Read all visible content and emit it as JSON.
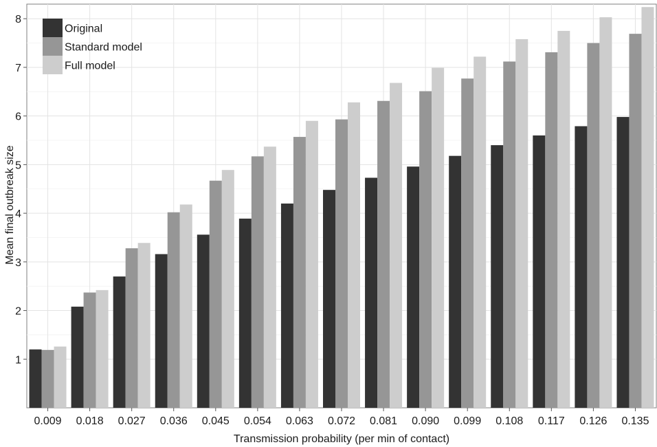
{
  "chart_data": {
    "type": "bar",
    "title": "",
    "xlabel": "Transmission probability (per min of contact)",
    "ylabel": "Mean final outbreak size",
    "categories": [
      "0.009",
      "0.018",
      "0.027",
      "0.036",
      "0.045",
      "0.054",
      "0.063",
      "0.072",
      "0.081",
      "0.090",
      "0.099",
      "0.108",
      "0.117",
      "0.126",
      "0.135"
    ],
    "series": [
      {
        "name": "Original",
        "color": "#333333",
        "values": [
          1.2,
          2.08,
          2.7,
          3.16,
          3.56,
          3.89,
          4.2,
          4.48,
          4.73,
          4.96,
          5.18,
          5.4,
          5.6,
          5.79,
          5.98
        ]
      },
      {
        "name": "Standard model",
        "color": "#969696",
        "values": [
          1.19,
          2.37,
          3.28,
          4.02,
          4.67,
          5.17,
          5.57,
          5.93,
          6.31,
          6.51,
          6.77,
          7.12,
          7.31,
          7.5,
          7.69
        ]
      },
      {
        "name": "Full model",
        "color": "#cdcdcd",
        "values": [
          1.26,
          2.42,
          3.39,
          4.18,
          4.89,
          5.37,
          5.9,
          6.28,
          6.68,
          6.99,
          7.22,
          7.58,
          7.75,
          8.03,
          8.24
        ]
      }
    ],
    "ylim": [
      0,
      8.3
    ],
    "yticks": [
      1,
      2,
      3,
      4,
      5,
      6,
      7,
      8
    ],
    "grid": true,
    "legend": "top-left"
  }
}
